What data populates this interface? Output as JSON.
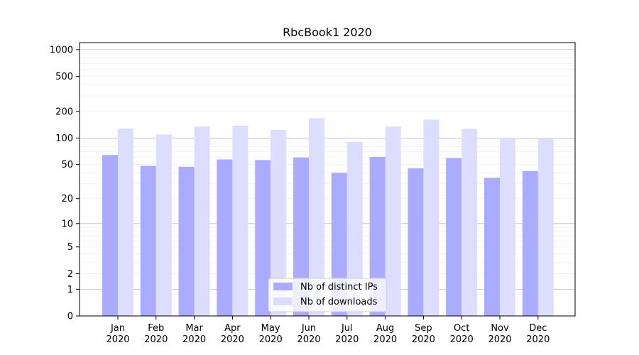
{
  "chart_data": {
    "type": "bar",
    "title": "RbcBook1 2020",
    "xlabel": "",
    "ylabel": "",
    "yscale": "log1p",
    "ylim": [
      0,
      1200
    ],
    "y_major_ticks": [
      0,
      1,
      2,
      5,
      10,
      20,
      50,
      100,
      200,
      500,
      1000
    ],
    "grid": true,
    "legend_position": "bottom-center",
    "categories": [
      [
        "Jan",
        "2020"
      ],
      [
        "Feb",
        "2020"
      ],
      [
        "Mar",
        "2020"
      ],
      [
        "Apr",
        "2020"
      ],
      [
        "May",
        "2020"
      ],
      [
        "Jun",
        "2020"
      ],
      [
        "Jul",
        "2020"
      ],
      [
        "Aug",
        "2020"
      ],
      [
        "Sep",
        "2020"
      ],
      [
        "Oct",
        "2020"
      ],
      [
        "Nov",
        "2020"
      ],
      [
        "Dec",
        "2020"
      ]
    ],
    "series": [
      {
        "name": "Nb of distinct IPs",
        "color": "#aaaaff",
        "values": [
          64,
          48,
          47,
          57,
          56,
          60,
          40,
          61,
          45,
          59,
          35,
          42
        ]
      },
      {
        "name": "Nb of downloads",
        "color": "#ddddff",
        "values": [
          128,
          110,
          135,
          138,
          124,
          168,
          90,
          135,
          162,
          127,
          101,
          101
        ]
      }
    ]
  }
}
